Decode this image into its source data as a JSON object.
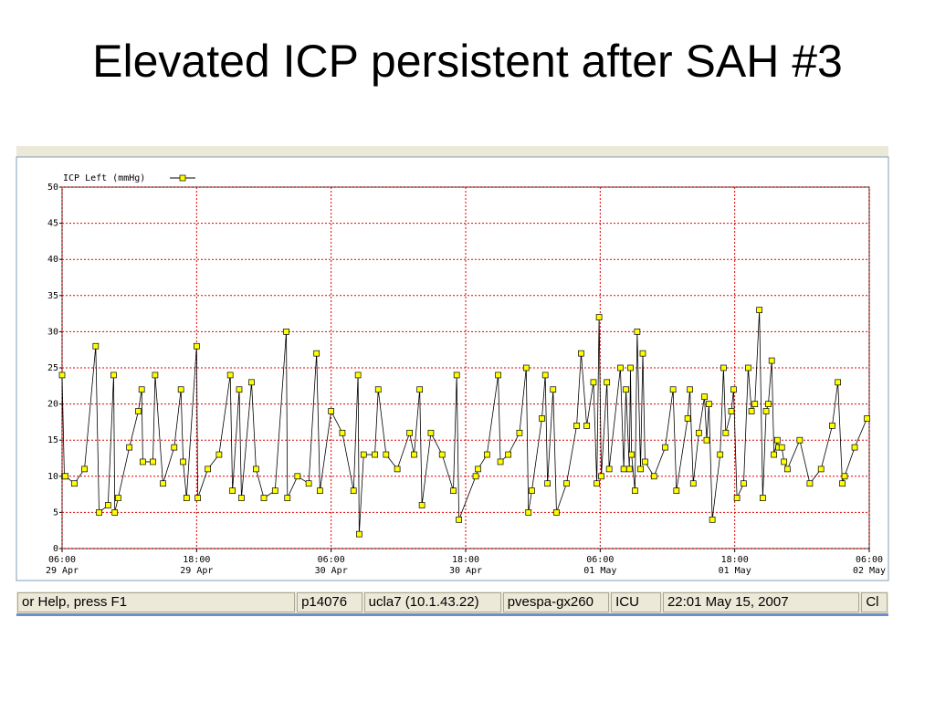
{
  "title": "Elevated ICP persistent after SAH #3",
  "chart_data": {
    "type": "line",
    "legend": "upper-left",
    "grid": true,
    "xlim": [
      0,
      72
    ],
    "xticks": [
      {
        "value": 0,
        "label": [
          "06:00",
          "29 Apr"
        ]
      },
      {
        "value": 12,
        "label": [
          "18:00",
          "29 Apr"
        ]
      },
      {
        "value": 24,
        "label": [
          "06:00",
          "30 Apr"
        ]
      },
      {
        "value": 36,
        "label": [
          "18:00",
          "30 Apr"
        ]
      },
      {
        "value": 48,
        "label": [
          "06:00",
          "01 May"
        ]
      },
      {
        "value": 60,
        "label": [
          "18:00",
          "01 May"
        ]
      },
      {
        "value": 72,
        "label": [
          "06:00",
          "02 May"
        ]
      }
    ],
    "ylim": [
      0,
      50
    ],
    "yticks": [
      0,
      5,
      10,
      15,
      20,
      25,
      30,
      35,
      40,
      45,
      50
    ],
    "x": [
      0,
      0.2,
      0.3,
      1.1,
      2.0,
      3.0,
      3.3,
      4.1,
      4.6,
      4.7,
      5.0,
      6.0,
      6.8,
      7.1,
      7.2,
      8.1,
      8.3,
      9.0,
      10.0,
      10.6,
      10.8,
      11.1,
      12.0,
      12.1,
      13.0,
      14.0,
      15.0,
      15.2,
      15.8,
      16.0,
      16.9,
      17.3,
      18.0,
      19.0,
      20.0,
      20.1,
      21.0,
      22.0,
      22.7,
      23.0,
      24.0,
      25.0,
      26.0,
      26.4,
      26.5,
      26.9,
      27.9,
      28.2,
      28.9,
      29.9,
      31.0,
      31.4,
      31.9,
      32.1,
      32.9,
      33.9,
      34.9,
      35.2,
      35.4,
      36.9,
      37.1,
      37.9,
      38.9,
      39.1,
      39.8,
      40.8,
      41.4,
      41.6,
      41.9,
      42.8,
      43.1,
      43.3,
      43.8,
      44.1,
      45.0,
      45.9,
      46.3,
      46.8,
      47.4,
      47.7,
      47.9,
      48.1,
      48.6,
      48.8,
      49.8,
      50.1,
      50.3,
      50.6,
      50.7,
      50.8,
      51.1,
      51.3,
      51.6,
      51.8,
      52.0,
      52.8,
      53.8,
      54.5,
      54.8,
      55.8,
      56.0,
      56.3,
      56.8,
      57.3,
      57.5,
      57.7,
      58.0,
      58.7,
      59.0,
      59.2,
      59.7,
      59.9,
      60.2,
      60.8,
      61.2,
      61.5,
      61.8,
      62.2,
      62.5,
      62.8,
      63.0,
      63.3,
      63.5,
      63.8,
      63.9,
      64.2,
      64.4,
      64.7,
      65.8,
      66.7,
      67.7,
      68.7,
      69.2,
      69.6,
      69.8,
      70.7,
      71.8
    ],
    "series": [
      {
        "name": "ICP Left (mmHg)",
        "color": "#000000",
        "marker_color": "#ffff00",
        "values": [
          24,
          10,
          10,
          9,
          11,
          28,
          5,
          6,
          24,
          5,
          7,
          14,
          19,
          22,
          12,
          12,
          24,
          9,
          14,
          22,
          12,
          7,
          28,
          7,
          11,
          13,
          24,
          8,
          22,
          7,
          23,
          11,
          7,
          8,
          30,
          7,
          10,
          9,
          27,
          8,
          19,
          16,
          8,
          24,
          2,
          13,
          13,
          22,
          13,
          11,
          16,
          13,
          22,
          6,
          16,
          13,
          8,
          24,
          4,
          10,
          11,
          13,
          24,
          12,
          13,
          16,
          25,
          5,
          8,
          18,
          24,
          9,
          22,
          5,
          9,
          17,
          27,
          17,
          23,
          9,
          32,
          10,
          23,
          11,
          25,
          11,
          22,
          11,
          25,
          13,
          8,
          30,
          11,
          27,
          12,
          10,
          14,
          22,
          8,
          18,
          22,
          9,
          16,
          21,
          15,
          20,
          4,
          13,
          25,
          16,
          19,
          22,
          7,
          9,
          25,
          19,
          20,
          33,
          7,
          19,
          20,
          26,
          13,
          15,
          14,
          14,
          12,
          11,
          15,
          9,
          11,
          17,
          23,
          9,
          10,
          14,
          18
        ]
      }
    ]
  },
  "status_bar": [
    "or Help, press F1",
    "p14076",
    "ucla7 (10.1.43.22)",
    "pvespa-gx260",
    "ICU",
    "22:01 May 15, 2007",
    "Cl"
  ]
}
